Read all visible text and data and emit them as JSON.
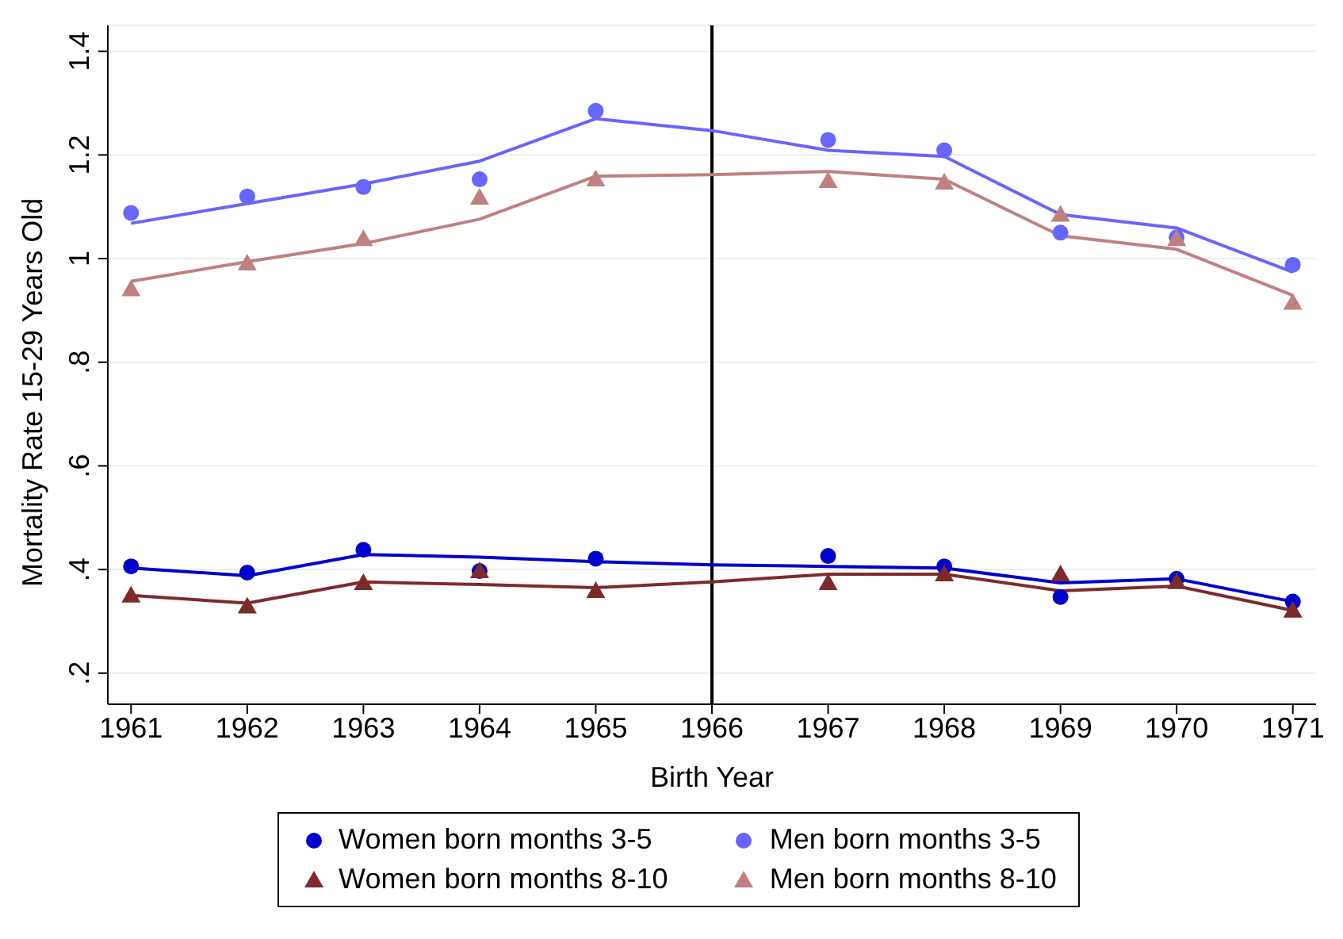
{
  "chart_data": {
    "type": "scatter",
    "xlabel": "Birth Year",
    "ylabel": "Mortality Rate 15-29 Years Old",
    "x": [
      1961,
      1962,
      1963,
      1964,
      1965,
      1967,
      1968,
      1969,
      1970,
      1971
    ],
    "xlim": [
      1960.8,
      1971.2
    ],
    "xticks": [
      1961,
      1962,
      1963,
      1964,
      1965,
      1966,
      1967,
      1968,
      1969,
      1970,
      1971
    ],
    "ylim": [
      0.14,
      1.45
    ],
    "yticks": [
      {
        "value": 0.2,
        "label": ".2"
      },
      {
        "value": 0.4,
        "label": ".4"
      },
      {
        "value": 0.6,
        "label": ".6"
      },
      {
        "value": 0.8,
        "label": ".8"
      },
      1,
      1.2,
      1.4
    ],
    "grid": "y",
    "legend": "bottom",
    "ref_lines": [
      {
        "axis": "x",
        "value": 1966,
        "color": "#000000"
      }
    ],
    "series": [
      {
        "name": "Women born months 3-5",
        "marker": "circle",
        "color": "#0000cc",
        "values": [
          0.406,
          0.394,
          0.438,
          0.397,
          0.421,
          0.426,
          0.406,
          0.347,
          0.382,
          0.338
        ]
      },
      {
        "name": "Men born months 3-5",
        "marker": "circle",
        "color": "#6666ff",
        "values": [
          1.088,
          1.12,
          1.138,
          1.153,
          1.285,
          1.229,
          1.209,
          1.05,
          1.041,
          0.988
        ]
      },
      {
        "name": "Women born months 8-10",
        "marker": "triangle",
        "color": "#7f2a2a",
        "values": [
          0.35,
          0.329,
          0.374,
          0.397,
          0.359,
          0.374,
          0.391,
          0.391,
          0.376,
          0.321
        ]
      },
      {
        "name": "Men born months 8-10",
        "marker": "triangle",
        "color": "#c08080",
        "values": [
          0.941,
          0.991,
          1.038,
          1.118,
          1.153,
          1.15,
          1.147,
          1.085,
          1.038,
          0.915
        ]
      },
      {
        "type": "line",
        "marker": "none",
        "color": "#0000cc",
        "x": [
          1961,
          1962,
          1963,
          1964,
          1965,
          1966,
          1967,
          1968,
          1969,
          1970,
          1971
        ],
        "values": [
          0.403,
          0.388,
          0.429,
          0.424,
          0.415,
          0.409,
          0.406,
          0.403,
          0.374,
          0.382,
          0.338
        ]
      },
      {
        "type": "line",
        "marker": "none",
        "color": "#6666ff",
        "x": [
          1961,
          1962,
          1963,
          1964,
          1965,
          1966,
          1967,
          1968,
          1969,
          1970,
          1971
        ],
        "values": [
          1.068,
          1.106,
          1.144,
          1.188,
          1.27,
          1.247,
          1.209,
          1.197,
          1.085,
          1.059,
          0.974
        ]
      },
      {
        "type": "line",
        "marker": "none",
        "color": "#7f2a2a",
        "x": [
          1961,
          1962,
          1963,
          1964,
          1965,
          1966,
          1967,
          1968,
          1969,
          1970,
          1971
        ],
        "values": [
          0.35,
          0.335,
          0.376,
          0.371,
          0.365,
          0.376,
          0.391,
          0.391,
          0.359,
          0.368,
          0.321
        ]
      },
      {
        "type": "line",
        "marker": "none",
        "color": "#c08080",
        "x": [
          1961,
          1962,
          1963,
          1964,
          1965,
          1966,
          1967,
          1968,
          1969,
          1970,
          1971
        ],
        "values": [
          0.956,
          0.994,
          1.029,
          1.076,
          1.159,
          1.162,
          1.168,
          1.153,
          1.044,
          1.018,
          0.929
        ]
      }
    ]
  }
}
